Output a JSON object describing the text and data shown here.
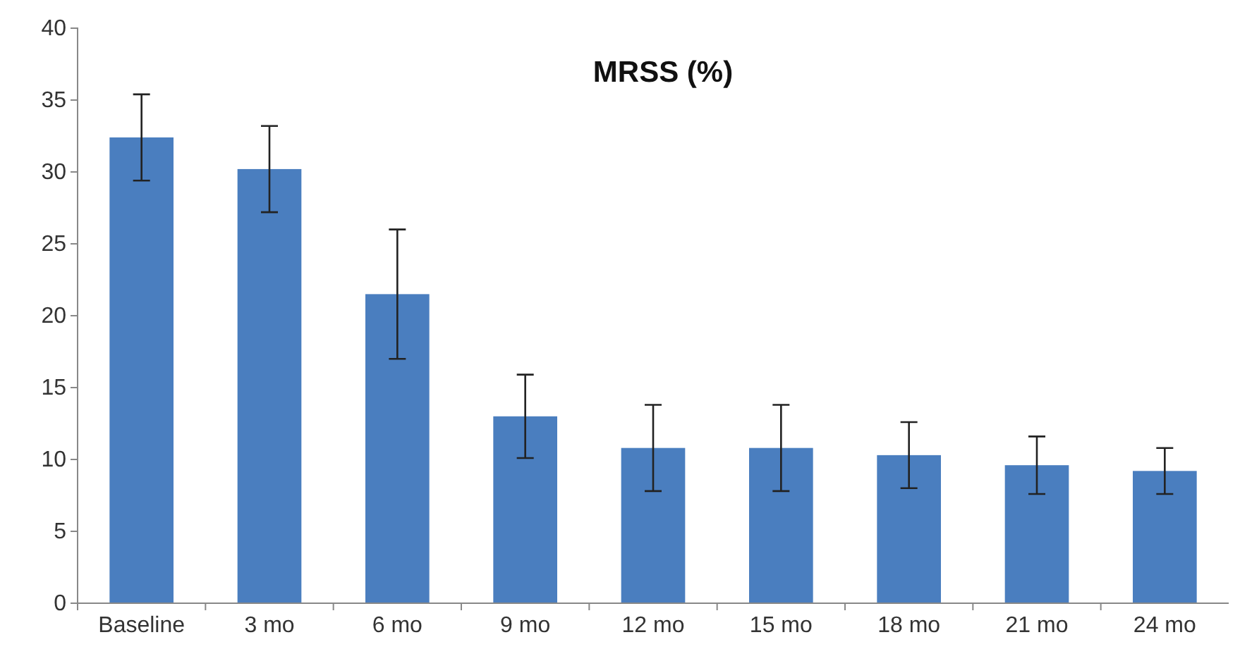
{
  "chart_data": {
    "type": "bar",
    "title": "MRSS (%)",
    "categories": [
      "Baseline",
      "3 mo",
      "6 mo",
      "9 mo",
      "12 mo",
      "15 mo",
      "18 mo",
      "21 mo",
      "24 mo"
    ],
    "values": [
      32.4,
      30.2,
      21.5,
      13,
      10.8,
      10.8,
      10.3,
      9.6,
      9.2
    ],
    "errors": [
      3,
      3,
      4.5,
      2.9,
      3,
      3,
      2.3,
      2,
      1.6
    ],
    "color": "#4a7ebf",
    "ylim": [
      0,
      40
    ],
    "yticks": [
      0,
      5,
      10,
      15,
      20,
      25,
      30,
      35,
      40
    ],
    "grid": false
  }
}
